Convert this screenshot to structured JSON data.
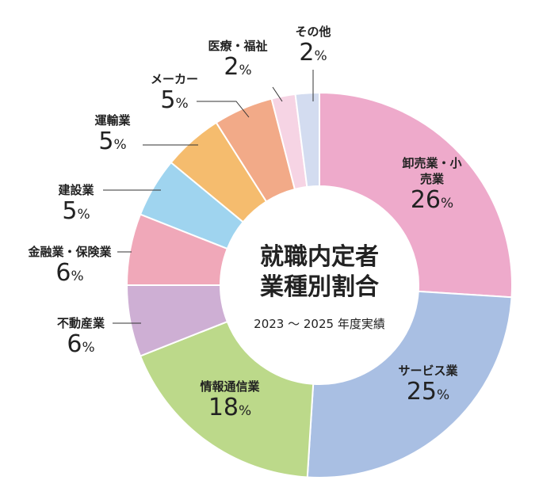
{
  "chart_data": {
    "type": "donut",
    "title": "就職内定者業種別割合",
    "subtitle": "2023 ～ 2025 年度実績",
    "unit": "%",
    "categories": [
      "卸売業・小売業",
      "サービス業",
      "情報通信業",
      "不動産業",
      "金融業・保険業",
      "建設業",
      "運輸業",
      "メーカー",
      "医療・福祉",
      "その他"
    ],
    "values": [
      26,
      25,
      18,
      6,
      6,
      5,
      5,
      5,
      2,
      2
    ],
    "colors": [
      "#eeaacb",
      "#a9bfe3",
      "#bcd98a",
      "#ceafd4",
      "#f0a8b9",
      "#9fd4ef",
      "#f5bc6e",
      "#f2aa88",
      "#f6d4e4",
      "#d3dcf0"
    ]
  }
}
